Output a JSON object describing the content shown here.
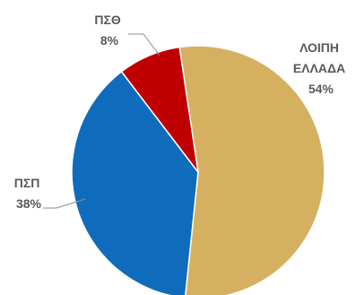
{
  "chart_data": {
    "type": "pie",
    "start_angle_deg": -8.5,
    "direction": "clockwise",
    "legend": "none",
    "slices": [
      {
        "name": "ΛΟΙΠΗ",
        "name_line2": "ΕΛΛΑΔΑ",
        "percent_label": "54%",
        "value": 54,
        "color": "#D5B060"
      },
      {
        "name": "ΠΣΠ",
        "name_line2": "",
        "percent_label": "38%",
        "value": 38,
        "color": "#0F6CBD"
      },
      {
        "name": "ΠΣΘ",
        "name_line2": "",
        "percent_label": "8%",
        "value": 8,
        "color": "#C00000"
      }
    ]
  }
}
